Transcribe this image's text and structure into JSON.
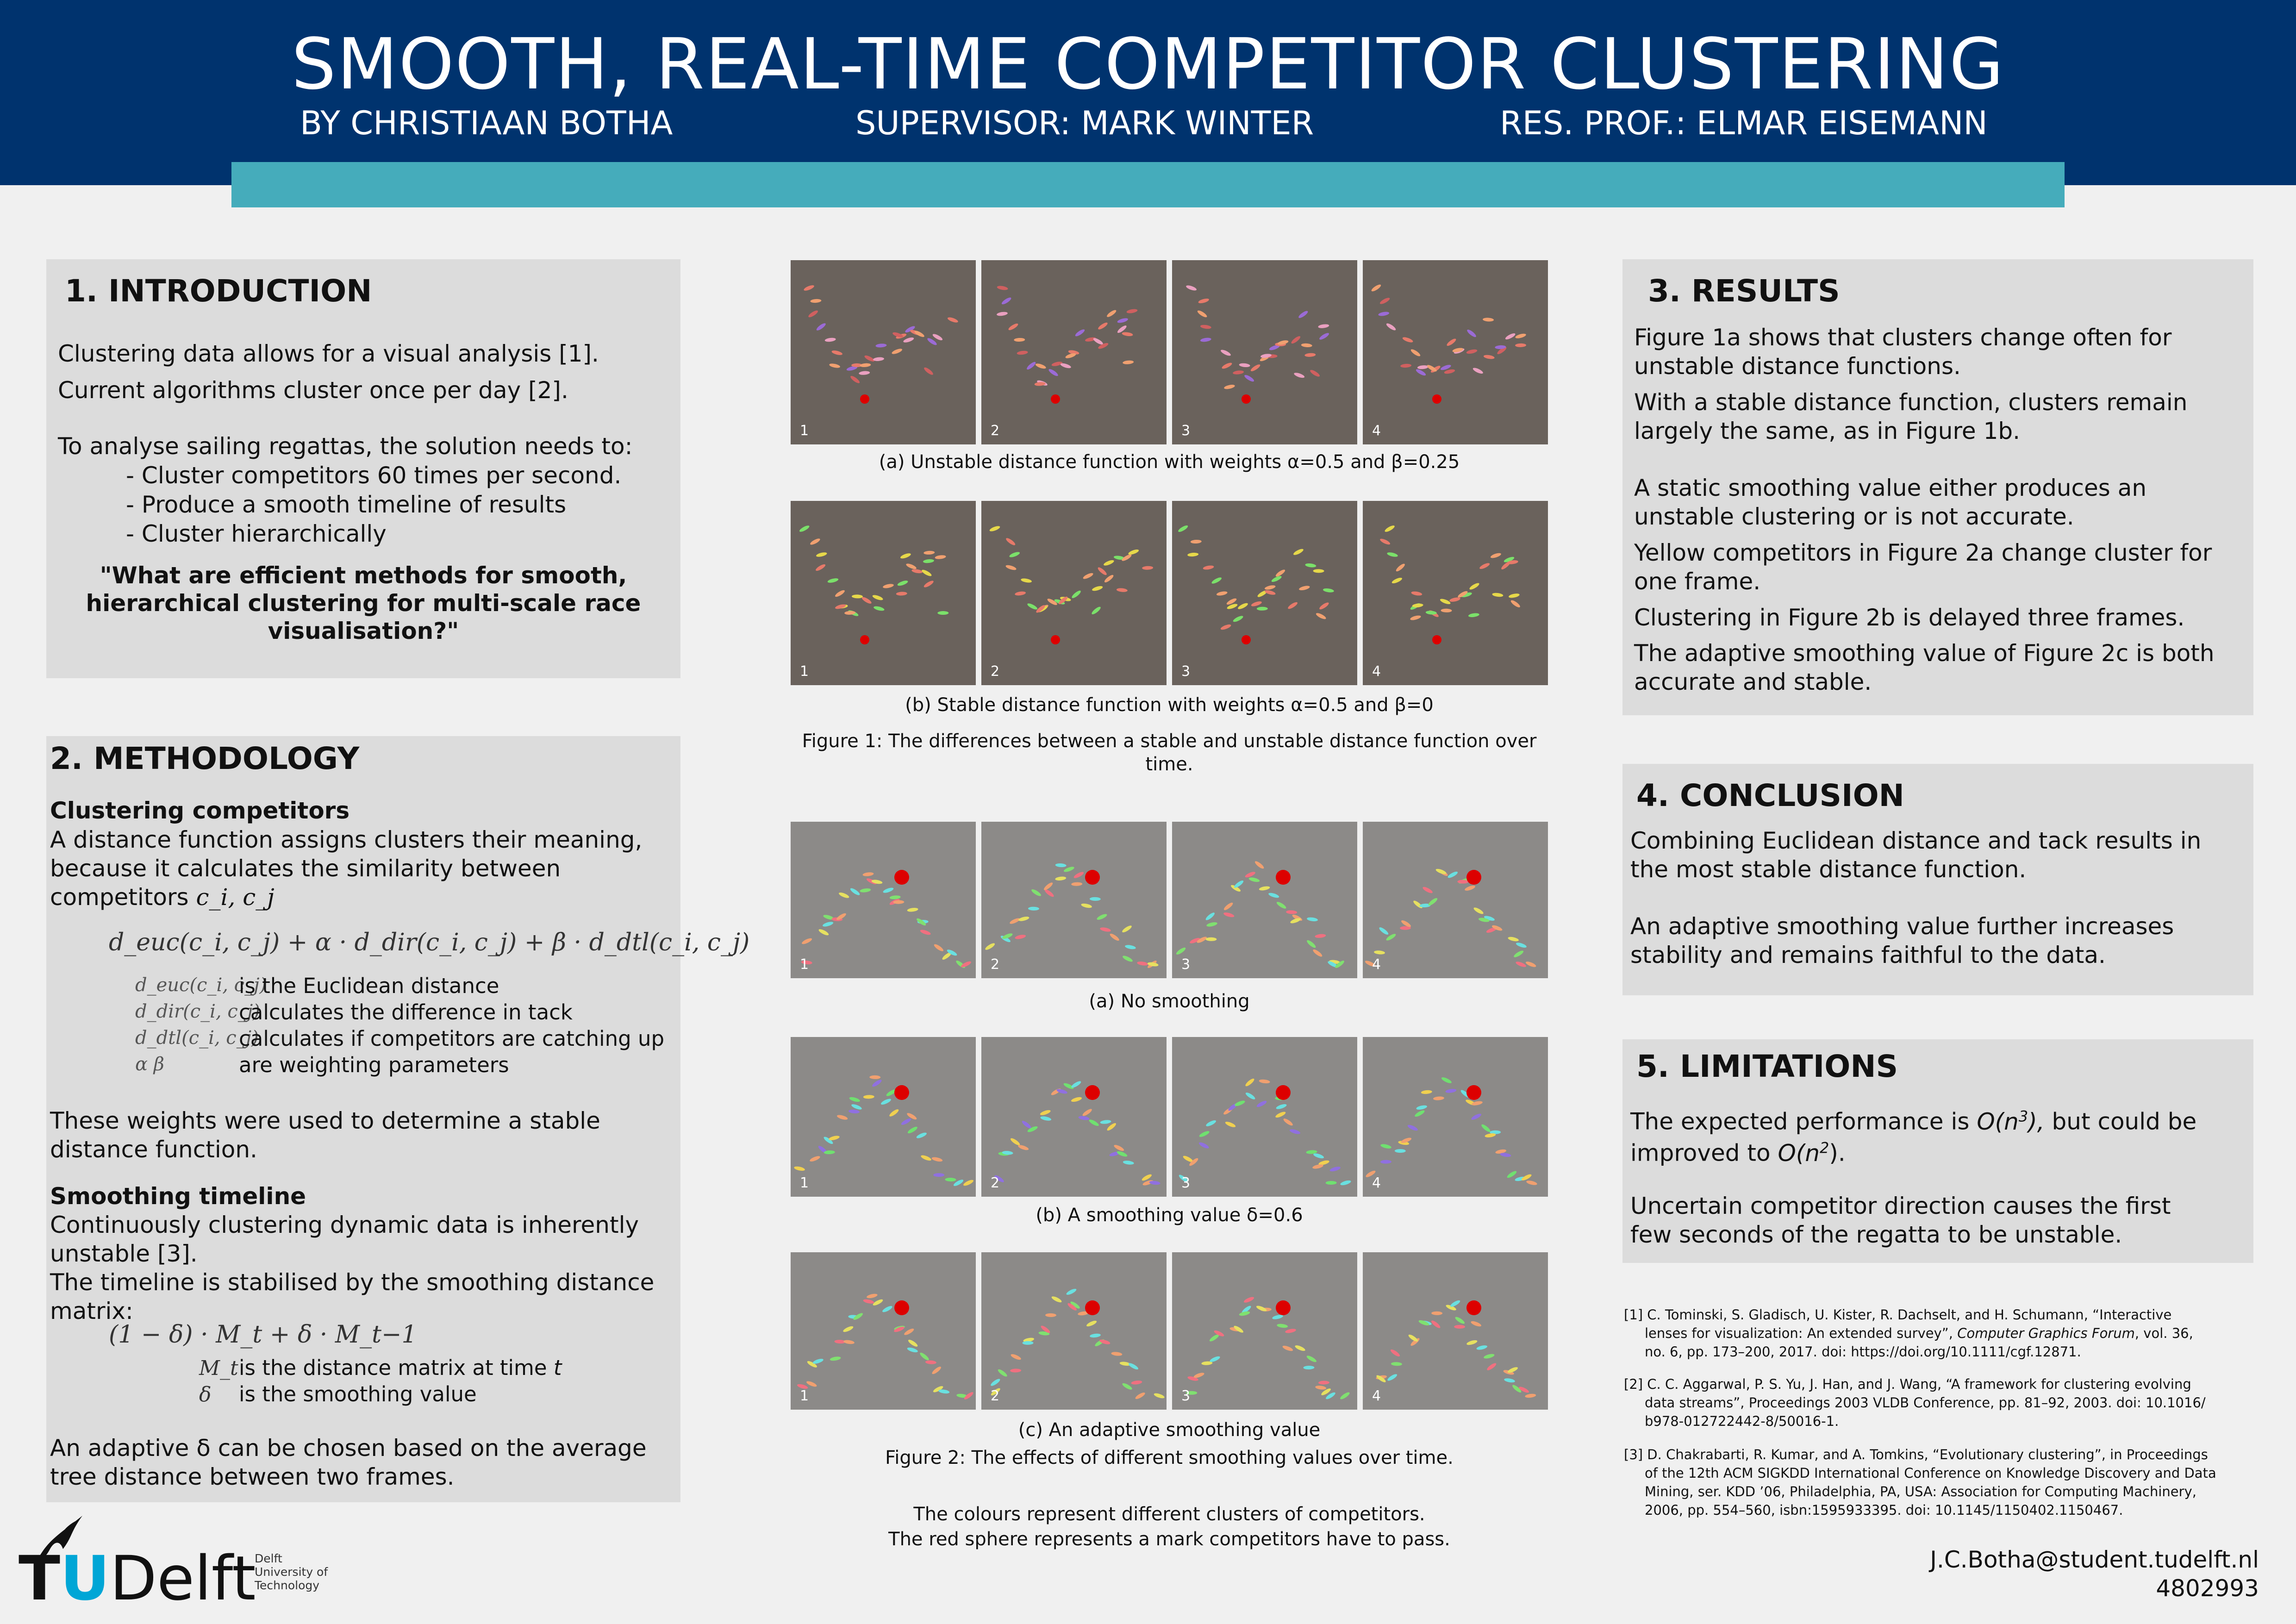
{
  "header": {
    "title": "SMOOTH, REAL-TIME COMPETITOR CLUSTERING",
    "author": "BY CHRISTIAAN BOTHA",
    "supervisor": "SUPERVISOR: MARK WINTER",
    "professor": "RES. PROF.: ELMAR EISEMANN"
  },
  "intro": {
    "title": "1. INTRODUCTION",
    "line1": "Clustering data allows for a visual analysis [1].",
    "line2": "Current algorithms cluster once per day [2].",
    "line3": "To analyse sailing regattas, the solution needs to:",
    "bullets": [
      "- Cluster competitors 60 times per second.",
      "- Produce a smooth timeline of results",
      "- Cluster hierarchically"
    ],
    "question": [
      "\"What are efficient methods for smooth,",
      "hierarchical clustering for multi-scale race",
      "visualisation?\""
    ]
  },
  "methodology": {
    "title": "2. METHODOLOGY",
    "sub1": "Clustering competitors",
    "p1": [
      "A distance function assigns clusters their meaning,",
      "because it calculates the similarity between",
      "competitors"
    ],
    "p1_vars": "c_i, c_j",
    "formula": "d_euc(c_i, c_j) + α · d_dir(c_i, c_j) + β · d_dtl(c_i, c_j)",
    "defs": [
      {
        "sym": "d_euc(c_i, c_j)",
        "desc": "is the Euclidean distance"
      },
      {
        "sym": "d_dir(c_i, c_j)",
        "desc": "calculates the difference in tack"
      },
      {
        "sym": "d_dtl(c_i, c_j)",
        "desc": "calculates if competitors are catching up"
      },
      {
        "sym": "α  β",
        "desc": "are weighting parameters"
      }
    ],
    "p2": [
      "These weights were used to determine a stable",
      "distance function."
    ],
    "sub2": "Smoothing timeline",
    "p3": [
      "Continuously clustering dynamic data is inherently",
      "unstable [3].",
      "The timeline is stabilised by the smoothing distance",
      "matrix:"
    ],
    "formula2": "(1 − δ) · M_t + δ · M_t−1",
    "defs2": [
      {
        "sym": "M_t",
        "desc": "is the distance matrix at time",
        "tail": "t"
      },
      {
        "sym": "δ",
        "desc": "is the smoothing value",
        "tail": ""
      }
    ],
    "p4": [
      "An adaptive δ can be chosen based on the average",
      "tree distance between two frames."
    ]
  },
  "figures": {
    "cap1a": "(a) Unstable distance function with weights α=0.5 and β=0.25",
    "cap1b": "(b) Stable distance function with weights α=0.5 and β=0",
    "fig1": [
      "Figure 1: The differences between a stable and unstable distance function over",
      "time."
    ],
    "cap2a": "(a) No smoothing",
    "cap2b": "(b) A smoothing value δ=0.6",
    "cap2c": "(c) An adaptive smoothing value",
    "fig2": "Figure 2: The effects of different smoothing values over time.",
    "note": [
      "The colours represent different clusters of competitors.",
      "The red sphere represents a mark competitors have to pass."
    ],
    "frame_labels": [
      "1",
      "2",
      "3",
      "4"
    ],
    "colors": {
      "dark_bg": "#6a625c",
      "light_bg": "#8c8a88",
      "mark": "#dd0000"
    }
  },
  "results": {
    "title": "3. RESULTS",
    "lines": [
      "Figure 1a shows that clusters change often for",
      "unstable distance functions.",
      "With a stable distance function, clusters remain",
      "largely the same, as in Figure 1b.",
      "A static smoothing value either produces an",
      "unstable clustering or is not accurate.",
      "Yellow competitors in Figure 2a change cluster for",
      "one frame.",
      "Clustering in Figure 2b is delayed three frames.",
      "The adaptive smoothing value of Figure 2c is both",
      "accurate and stable."
    ]
  },
  "conclusion": {
    "title": "4. CONCLUSION",
    "lines": [
      "Combining Euclidean distance and tack results in",
      "the most stable distance function.",
      "An adaptive smoothing value further increases",
      "stability and remains faithful to the data."
    ]
  },
  "limitations": {
    "title": "5. LIMITATIONS",
    "l1a": "The expected performance is",
    "l1b": "O(n",
    "l1c": "3",
    "l1d": "),",
    "l1e": "but could be",
    "l2a": "improved to",
    "l2b": "O(n",
    "l2c": "2",
    "l2d": ").",
    "l3": "Uncertain competitor direction causes the first",
    "l4": "few seconds of the regatta to be unstable."
  },
  "references": [
    {
      "lines": [
        "[1] C. Tominski, S. Gladisch, U. Kister, R. Dachselt, and H. Schumann, “Interactive",
        "lenses for visualization: An extended survey”,",
        "no. 6, pp. 173–200, 2017. doi: https://doi.org/10.1111/cgf.12871."
      ],
      "journal": "Computer Graphics Forum",
      "journal_tail": ", vol. 36,"
    },
    {
      "lines": [
        "[2] C. C. Aggarwal, P. S. Yu, J. Han, and J. Wang, “A framework for clustering evolving",
        "data streams”, Proceedings 2003 VLDB Conference, pp. 81–92, 2003. doi: 10.1016/",
        "b978-012722442-8/50016-1."
      ]
    },
    {
      "lines": [
        "[3] D. Chakrabarti, R. Kumar, and A. Tomkins, “Evolutionary clustering”, in Proceedings",
        "of the 12th ACM SIGKDD International Conference on Knowledge Discovery and Data",
        "Mining, ser. KDD ’06, Philadelphia, PA, USA: Association for Computing Machinery,",
        "2006, pp. 554–560, isbn:1595933395. doi: 10.1145/1150402.1150467."
      ]
    }
  ],
  "footer": {
    "email": "J.C.Botha@student.tudelft.nl",
    "student_id": "4802993",
    "logo_t": "T",
    "logo_u": "U",
    "logo_delft": "Delft",
    "logo_sub": [
      "Delft",
      "University of",
      "Technology"
    ]
  }
}
